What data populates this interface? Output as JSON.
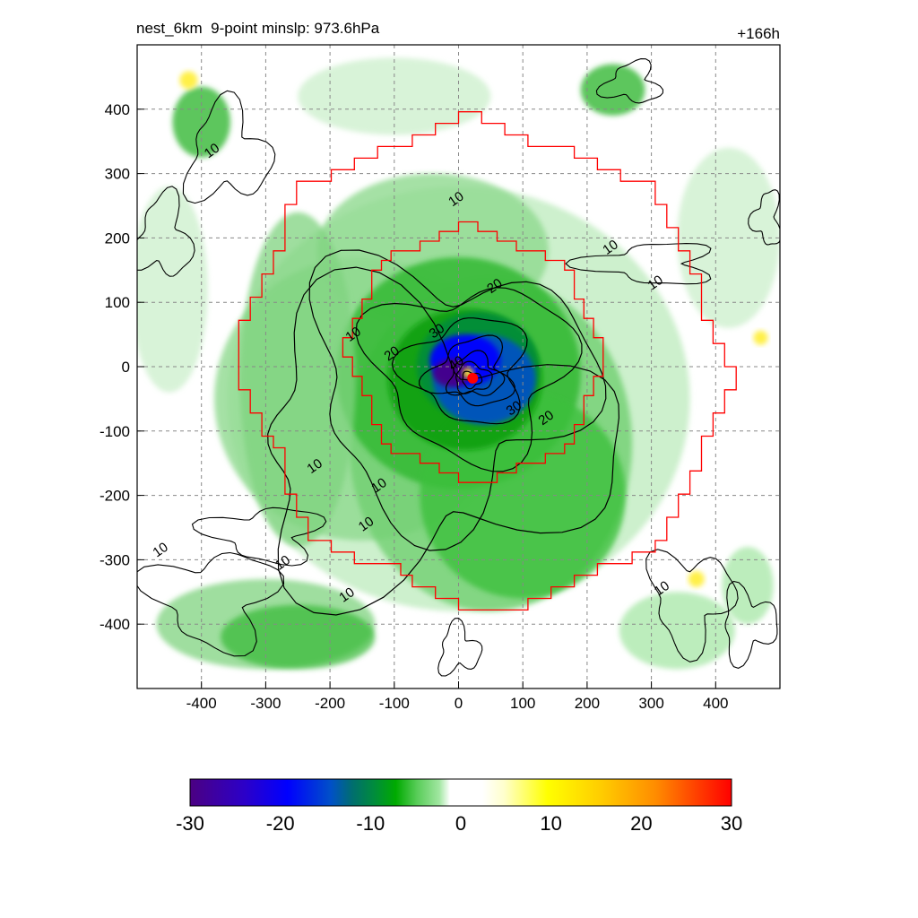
{
  "chart_data": {
    "type": "heatmap",
    "title_left": "nest_6km  9-point minslp: 973.6hPa",
    "title_right": "+166h",
    "x_ticks": [
      "-400",
      "-300",
      "-200",
      "-100",
      "0",
      "100",
      "200",
      "300",
      "400"
    ],
    "y_ticks": [
      "400",
      "300",
      "200",
      "100",
      "0",
      "-100",
      "-200",
      "-300",
      "-400"
    ],
    "xlim": [
      -500,
      500
    ],
    "ylim": [
      -500,
      500
    ],
    "grid": true,
    "colorbar": {
      "ticks": [
        "-30",
        "-20",
        "-10",
        "0",
        "10",
        "20",
        "30"
      ],
      "range": [
        -30,
        30
      ],
      "colors_negative": [
        "#4b0082",
        "#2c00c8",
        "#0000ff",
        "#0050c8",
        "#006e6e",
        "#008c3c",
        "#00aa00",
        "#00be28",
        "#5acd5a",
        "#a0e6a0",
        "#ffffff"
      ],
      "colors_positive": [
        "#ffffff",
        "#ffffcc",
        "#ffff00",
        "#ffcc00",
        "#ff8c00",
        "#ff4500",
        "#ff0000"
      ]
    },
    "contour_labels": [
      "10",
      "10",
      "10",
      "10",
      "10",
      "10",
      "10",
      "10",
      "10",
      "10",
      "10",
      "10",
      "20",
      "20",
      "20",
      "30",
      "30",
      "40"
    ],
    "center_marker": {
      "x": 22,
      "y": -18,
      "color": "#ff0000"
    },
    "boundary_color": "#ff0000",
    "contour_color": "#000000"
  }
}
